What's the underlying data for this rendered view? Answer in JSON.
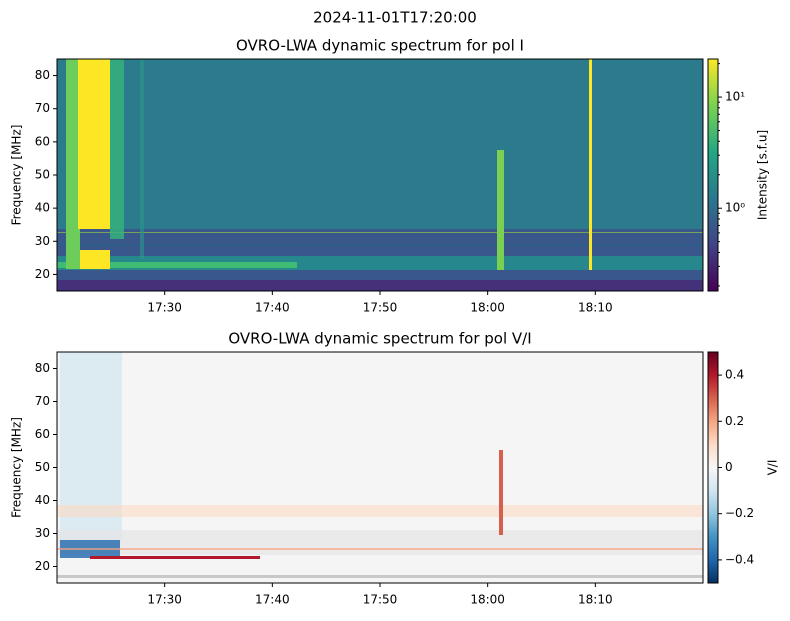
{
  "title": "2024-11-01T17:20:00",
  "chart_data": [
    {
      "type": "heatmap",
      "title": "OVRO-LWA dynamic spectrum for pol I",
      "ylabel": "Frequency [MHz]",
      "xlim": [
        "17:20",
        "18:20"
      ],
      "xticks": [
        "17:30",
        "17:40",
        "17:50",
        "18:00",
        "18:10"
      ],
      "ylim": [
        15,
        85
      ],
      "yticks": [
        20,
        30,
        40,
        50,
        60,
        70,
        80
      ],
      "colorbar": {
        "label": "Intensity [s.f.u]",
        "colormap": "viridis",
        "scale": "log",
        "lim": [
          0.18,
          22
        ],
        "ticks": [
          {
            "value": 1,
            "label": "10⁰"
          },
          {
            "value": 10,
            "label": "10¹"
          }
        ]
      }
    },
    {
      "type": "heatmap",
      "title": "OVRO-LWA dynamic spectrum for pol V/I",
      "ylabel": "Frequency [MHz]",
      "xlim": [
        "17:20",
        "18:20"
      ],
      "xticks": [
        "17:30",
        "17:40",
        "17:50",
        "18:00",
        "18:10"
      ],
      "ylim": [
        15,
        85
      ],
      "yticks": [
        20,
        30,
        40,
        50,
        60,
        70,
        80
      ],
      "colorbar": {
        "label": "V/I",
        "colormap": "RdBu_r",
        "scale": "linear",
        "lim": [
          -0.5,
          0.5
        ],
        "ticks": [
          {
            "value": -0.4,
            "label": "−0.4"
          },
          {
            "value": -0.2,
            "label": "−0.2"
          },
          0.0,
          0.2,
          0.4
        ]
      }
    }
  ]
}
